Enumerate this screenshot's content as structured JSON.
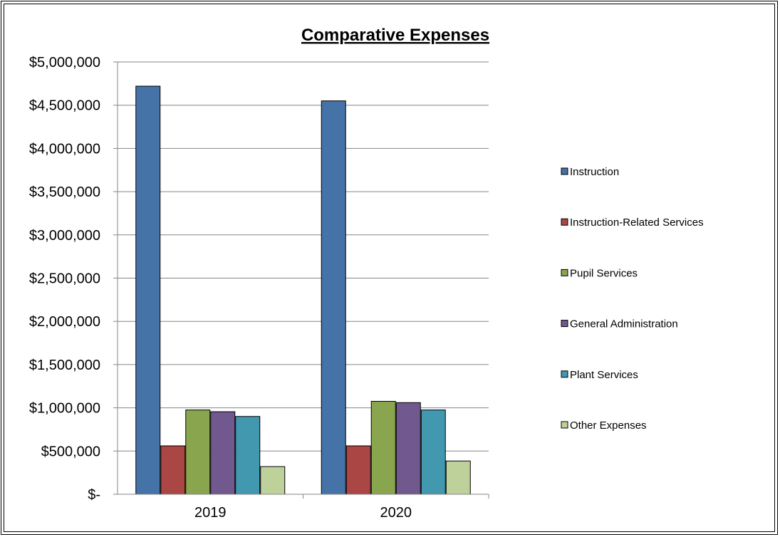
{
  "chart_data": {
    "type": "bar",
    "title": "Comparative Expenses",
    "xlabel": "",
    "ylabel": "",
    "categories": [
      "2019",
      "2020"
    ],
    "ylim": [
      0,
      5000000
    ],
    "yticks": [
      0,
      500000,
      1000000,
      1500000,
      2000000,
      2500000,
      3000000,
      3500000,
      4000000,
      4500000,
      5000000
    ],
    "ytick_labels": [
      "$-",
      "$500,000",
      "$1,000,000",
      "$1,500,000",
      "$2,000,000",
      "$2,500,000",
      "$3,000,000",
      "$3,500,000",
      "$4,000,000",
      "$4,500,000",
      "$5,000,000"
    ],
    "grid": true,
    "legend_position": "right",
    "series": [
      {
        "name": "Instruction",
        "color": "#4572A7",
        "values": [
          4720000,
          4550000
        ]
      },
      {
        "name": "Instruction-Related Services",
        "color": "#AA4643",
        "values": [
          560000,
          560000
        ]
      },
      {
        "name": "Pupil Services",
        "color": "#89A54E",
        "values": [
          975000,
          1075000
        ]
      },
      {
        "name": "General Administration",
        "color": "#71588F",
        "values": [
          955000,
          1060000
        ]
      },
      {
        "name": "Plant Services",
        "color": "#4198AF",
        "values": [
          900000,
          975000
        ]
      },
      {
        "name": "Other Expenses",
        "color": "#BFD19A",
        "values": [
          320000,
          385000
        ]
      }
    ]
  }
}
